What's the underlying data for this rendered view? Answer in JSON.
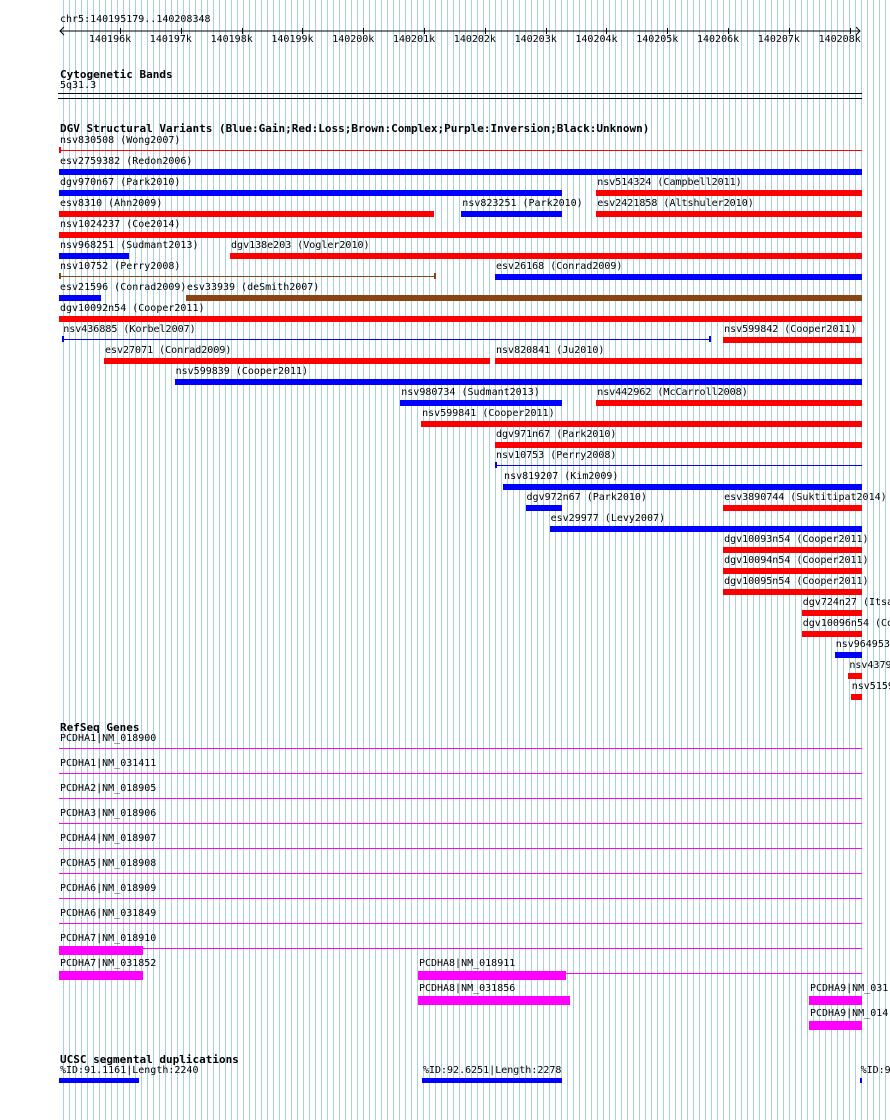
{
  "position": "chr5:140195179..140208348",
  "ruler_ticks": [
    "140196k",
    "140197k",
    "140198k",
    "140199k",
    "140200k",
    "140201k",
    "140202k",
    "140203k",
    "140204k",
    "140205k",
    "140206k",
    "140207k",
    "140208k"
  ],
  "tracks": {
    "cyto": {
      "title": "Cytogenetic Bands",
      "band": "5q31.3"
    },
    "dgv": {
      "title": "DGV Structural Variants (Blue:Gain;Red:Loss;Brown:Complex;Purple:Inversion;Black:Unknown)"
    },
    "refseq": {
      "title": "RefSeq Genes"
    },
    "segdup": {
      "title": "UCSC segmental duplications"
    }
  },
  "colors": {
    "gain": "#0000ff",
    "loss": "#ff0000",
    "complex": "#8b4513",
    "gene": "#ff00ff",
    "grid": "#a9cfe0"
  },
  "dgv_features": [
    {
      "label": "nsv830508 (Wong2007)",
      "row": 0,
      "type": "loss",
      "style": "line",
      "start": 0,
      "end": 1.0
    },
    {
      "label": "esv2759382 (Redon2006)",
      "row": 1,
      "type": "gain",
      "style": "bar",
      "start": 0,
      "end": 1.0
    },
    {
      "label": "dgv970n67 (Park2010)",
      "row": 2,
      "type": "gain",
      "style": "bar",
      "start": 0,
      "end": 0.626
    },
    {
      "label": "nsv514324 (Campbell2011)",
      "row": 2,
      "type": "loss",
      "style": "bar",
      "start": 0.669,
      "end": 1.0
    },
    {
      "label": "esv8310 (Ahn2009)",
      "row": 3,
      "type": "loss",
      "style": "bar",
      "start": 0,
      "end": 0.467
    },
    {
      "label": "nsv823251 (Park2010)",
      "row": 3,
      "type": "gain",
      "style": "bar",
      "start": 0.501,
      "end": 0.626
    },
    {
      "label": "esv2421858 (Altshuler2010)",
      "row": 3,
      "type": "loss",
      "style": "bar",
      "start": 0.669,
      "end": 1.0
    },
    {
      "label": "nsv1024237 (Coe2014)",
      "row": 4,
      "type": "loss",
      "style": "bar",
      "start": 0,
      "end": 1.0
    },
    {
      "label": "nsv968251 (Sudmant2013)",
      "row": 5,
      "type": "gain",
      "style": "bar",
      "start": 0,
      "end": 0.087
    },
    {
      "label": "dgv138e203 (Vogler2010)",
      "row": 5,
      "type": "loss",
      "style": "bar",
      "start": 0.213,
      "end": 1.0
    },
    {
      "label": "nsv10752 (Perry2008)",
      "row": 6,
      "type": "complex",
      "style": "line",
      "start": 0,
      "end": 0.469
    },
    {
      "label": "esv26168 (Conrad2009)",
      "row": 6,
      "type": "gain",
      "style": "bar",
      "start": 0.543,
      "end": 1.0
    },
    {
      "label": "esv21596 (Conrad2009)",
      "row": 7,
      "type": "gain",
      "style": "bar",
      "start": 0,
      "end": 0.052
    },
    {
      "label": "esv33939 (deSmith2007)",
      "row": 7,
      "type": "complex",
      "style": "bar",
      "start": 0.158,
      "end": 1.0
    },
    {
      "label": "dgv10092n54 (Cooper2011)",
      "row": 8,
      "type": "loss",
      "style": "bar",
      "start": 0,
      "end": 1.0
    },
    {
      "label": "nsv436885 (Korbel2007)",
      "row": 9,
      "type": "gain",
      "style": "line",
      "start": 0.004,
      "end": 0.812
    },
    {
      "label": "nsv599842 (Cooper2011)",
      "row": 9,
      "type": "loss",
      "style": "bar",
      "start": 0.827,
      "end": 1.0
    },
    {
      "label": "esv27071 (Conrad2009)",
      "row": 10,
      "type": "loss",
      "style": "bar",
      "start": 0.056,
      "end": 0.537
    },
    {
      "label": "nsv820841 (Ju2010)",
      "row": 10,
      "type": "loss",
      "style": "bar",
      "start": 0.543,
      "end": 1.0
    },
    {
      "label": "nsv599839 (Cooper2011)",
      "row": 11,
      "type": "gain",
      "style": "bar",
      "start": 0.144,
      "end": 1.0
    },
    {
      "label": "nsv980734 (Sudmant2013)",
      "row": 12,
      "type": "gain",
      "style": "bar",
      "start": 0.425,
      "end": 0.627
    },
    {
      "label": "nsv442962 (McCarroll2008)",
      "row": 12,
      "type": "loss",
      "style": "bar",
      "start": 0.669,
      "end": 1.0
    },
    {
      "label": "nsv599841 (Cooper2011)",
      "row": 13,
      "type": "loss",
      "style": "bar",
      "start": 0.451,
      "end": 1.0
    },
    {
      "label": "dgv971n67 (Park2010)",
      "row": 14,
      "type": "loss",
      "style": "bar",
      "start": 0.543,
      "end": 1.0
    },
    {
      "label": "nsv10753 (Perry2008)",
      "row": 15,
      "type": "gain",
      "style": "line",
      "start": 0.543,
      "end": 1.0
    },
    {
      "label": "nsv819207 (Kim2009)",
      "row": 16,
      "type": "gain",
      "style": "bar",
      "start": 0.553,
      "end": 1.0
    },
    {
      "label": "dgv972n67 (Park2010)",
      "row": 17,
      "type": "gain",
      "style": "bar",
      "start": 0.581,
      "end": 0.627
    },
    {
      "label": "esv3890744 (Suktitipat2014)",
      "row": 17,
      "type": "loss",
      "style": "bar",
      "start": 0.827,
      "end": 1.0
    },
    {
      "label": "esv29977 (Levy2007)",
      "row": 18,
      "type": "gain",
      "style": "bar",
      "start": 0.611,
      "end": 1.0
    },
    {
      "label": "dgv10093n54 (Cooper2011)",
      "row": 19,
      "type": "loss",
      "style": "bar",
      "start": 0.827,
      "end": 1.0
    },
    {
      "label": "dgv10094n54 (Cooper2011)",
      "row": 20,
      "type": "loss",
      "style": "bar",
      "start": 0.827,
      "end": 1.0
    },
    {
      "label": "dgv10095n54 (Cooper2011)",
      "row": 21,
      "type": "loss",
      "style": "bar",
      "start": 0.827,
      "end": 1.0
    },
    {
      "label": "dgv724n27 (Itsa",
      "row": 22,
      "type": "loss",
      "style": "bar",
      "start": 0.925,
      "end": 1.0
    },
    {
      "label": "dgv10096n54 (Co",
      "row": 23,
      "type": "loss",
      "style": "bar",
      "start": 0.925,
      "end": 1.0
    },
    {
      "label": "nsv964953",
      "row": 24,
      "type": "gain",
      "style": "bar",
      "start": 0.966,
      "end": 1.0
    },
    {
      "label": "nsv4379",
      "row": 25,
      "type": "loss",
      "style": "bar",
      "start": 0.983,
      "end": 1.0
    },
    {
      "label": "nsv5159",
      "row": 26,
      "type": "loss",
      "style": "bar",
      "start": 0.986,
      "end": 1.0
    }
  ],
  "genes": [
    {
      "label": "PCDHA1|NM_018900",
      "row": 0,
      "start": 0,
      "end": 1.0,
      "exons": []
    },
    {
      "label": "PCDHA1|NM_031411",
      "row": 1,
      "start": 0,
      "end": 1.0,
      "exons": []
    },
    {
      "label": "PCDHA2|NM_018905",
      "row": 2,
      "start": 0,
      "end": 1.0,
      "exons": []
    },
    {
      "label": "PCDHA3|NM_018906",
      "row": 3,
      "start": 0,
      "end": 1.0,
      "exons": []
    },
    {
      "label": "PCDHA4|NM_018907",
      "row": 4,
      "start": 0,
      "end": 1.0,
      "exons": []
    },
    {
      "label": "PCDHA5|NM_018908",
      "row": 5,
      "start": 0,
      "end": 1.0,
      "exons": []
    },
    {
      "label": "PCDHA6|NM_018909",
      "row": 6,
      "start": 0,
      "end": 1.0,
      "exons": []
    },
    {
      "label": "PCDHA6|NM_031849",
      "row": 7,
      "start": 0,
      "end": 1.0,
      "exons": []
    },
    {
      "label": "PCDHA7|NM_018910",
      "row": 8,
      "start": 0,
      "end": 1.0,
      "exons": [
        [
          0,
          0.104
        ]
      ]
    },
    {
      "label": "PCDHA7|NM_031852",
      "row": 9,
      "start": 0,
      "end": 0.104,
      "exons": [
        [
          0,
          0.104
        ]
      ]
    },
    {
      "label": "PCDHA8|NM_018911",
      "row": 9,
      "start": 0.447,
      "end": 1.0,
      "exons": [
        [
          0.447,
          0.631
        ]
      ]
    },
    {
      "label": "PCDHA8|NM_031856",
      "row": 10,
      "start": 0.447,
      "end": 0.636,
      "exons": [
        [
          0.447,
          0.636
        ]
      ]
    },
    {
      "label": "PCDHA9|NM_031",
      "row": 10,
      "start": 0.934,
      "end": 1.0,
      "exons": [
        [
          0.934,
          1.0
        ]
      ]
    },
    {
      "label": "PCDHA9|NM_014",
      "row": 11,
      "start": 0.934,
      "end": 1.0,
      "exons": [
        [
          0.934,
          1.0
        ]
      ]
    }
  ],
  "segdups": [
    {
      "label": "%ID:91.1161|Length:2240",
      "start": 0,
      "end": 0.1
    },
    {
      "label": "%ID:92.6251|Length:2278",
      "start": 0.452,
      "end": 0.627
    },
    {
      "label": "%ID:9",
      "start": 0.997,
      "end": 1.0
    }
  ]
}
